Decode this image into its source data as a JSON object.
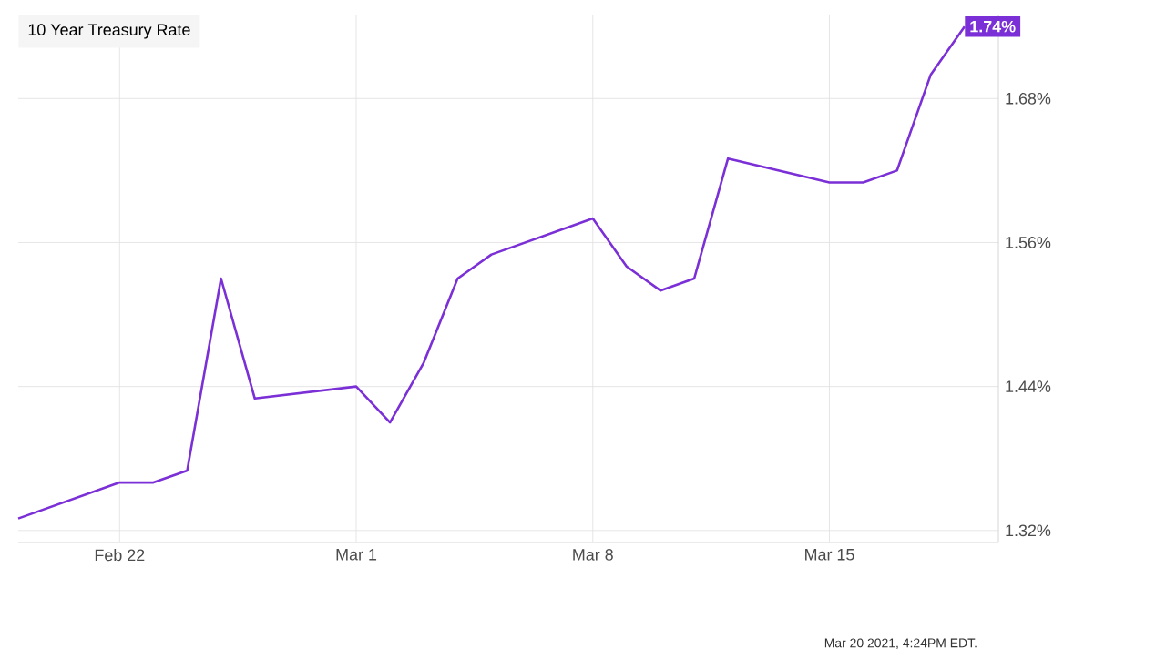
{
  "chart_data": {
    "type": "line",
    "title": "10 Year Treasury Rate",
    "x": [
      "2021-02-19",
      "2021-02-22",
      "2021-02-23",
      "2021-02-24",
      "2021-02-25",
      "2021-02-26",
      "2021-03-01",
      "2021-03-02",
      "2021-03-03",
      "2021-03-04",
      "2021-03-05",
      "2021-03-08",
      "2021-03-09",
      "2021-03-10",
      "2021-03-11",
      "2021-03-12",
      "2021-03-15",
      "2021-03-16",
      "2021-03-17",
      "2021-03-18",
      "2021-03-19"
    ],
    "series": [
      {
        "color": "#7b2fd6",
        "values": [
          1.33,
          1.36,
          1.36,
          1.37,
          1.53,
          1.43,
          1.44,
          1.41,
          1.46,
          1.53,
          1.55,
          1.58,
          1.54,
          1.52,
          1.53,
          1.63,
          1.61,
          1.61,
          1.62,
          1.7,
          1.74
        ],
        "value_labels": [
          null,
          null,
          null,
          null,
          null,
          null,
          null,
          null,
          null,
          null,
          null,
          null,
          null,
          null,
          null,
          null,
          null,
          null,
          null,
          null,
          "1.74%"
        ]
      }
    ],
    "xlim": [
      "2021-02-19",
      "2021-03-20"
    ],
    "xticks": [
      {
        "value": "2021-02-22",
        "label": "Feb 22"
      },
      {
        "value": "2021-03-01",
        "label": "Mar 1"
      },
      {
        "value": "2021-03-08",
        "label": "Mar 8"
      },
      {
        "value": "2021-03-15",
        "label": "Mar 15"
      }
    ],
    "ylim": [
      1.31,
      1.75
    ],
    "yticks": [
      {
        "value": 1.32,
        "label": "1.32%"
      },
      {
        "value": 1.44,
        "label": "1.44%"
      },
      {
        "value": 1.56,
        "label": "1.56%"
      },
      {
        "value": 1.68,
        "label": "1.68%"
      }
    ],
    "grid": true,
    "annotations": [
      "Mar 20 2021, 4:24PM EDT."
    ]
  }
}
